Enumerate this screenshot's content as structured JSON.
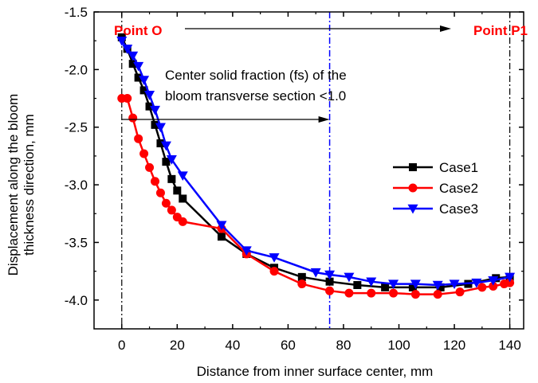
{
  "chart_data": {
    "type": "line",
    "xlabel": "Distance from inner surface center, mm",
    "ylabel_lines": [
      "Displacement along the bloom",
      "thickness direction, mm"
    ],
    "xlim": [
      -10,
      145
    ],
    "ylim": [
      -4.25,
      -1.5
    ],
    "xticks": [
      0,
      20,
      40,
      60,
      80,
      100,
      120,
      140
    ],
    "xtick_labels": [
      "0",
      "20",
      "40",
      "60",
      "80",
      "100",
      "120",
      "140"
    ],
    "yticks": [
      -1.5,
      -2.0,
      -2.5,
      -3.0,
      -3.5,
      -4.0
    ],
    "ytick_labels": [
      "-1.5",
      "-2.0",
      "-2.5",
      "-3.0",
      "-3.5",
      "-4.0"
    ],
    "grid": false,
    "legend_position": "right",
    "annotations": {
      "point_o": "Point O",
      "point_p1": "Point P1",
      "fs_line1": "Center solid fraction (fs) of the",
      "fs_line2": "bloom transverse section <1.0"
    },
    "reference_lines": {
      "point_o_x": 0,
      "point_p1_x": 140,
      "fs_boundary_x": 75
    },
    "series": [
      {
        "name": "Case1",
        "color": "#000000",
        "marker": "square",
        "x": [
          0,
          2,
          4,
          6,
          8,
          10,
          12,
          14,
          16,
          18,
          20,
          22,
          36,
          45,
          55,
          65,
          75,
          85,
          95,
          105,
          115,
          125,
          135,
          140
        ],
        "y": [
          -1.72,
          -1.82,
          -1.95,
          -2.07,
          -2.18,
          -2.32,
          -2.48,
          -2.64,
          -2.8,
          -2.95,
          -3.05,
          -3.12,
          -3.45,
          -3.6,
          -3.72,
          -3.8,
          -3.84,
          -3.87,
          -3.89,
          -3.89,
          -3.89,
          -3.86,
          -3.81,
          -3.8
        ]
      },
      {
        "name": "Case2",
        "color": "#ff0000",
        "marker": "circle",
        "x": [
          0,
          2,
          4,
          6,
          8,
          10,
          12,
          14,
          16,
          18,
          20,
          22,
          36,
          45,
          55,
          65,
          75,
          82,
          90,
          98,
          106,
          114,
          122,
          130,
          134,
          138,
          140
        ],
        "y": [
          -2.25,
          -2.25,
          -2.42,
          -2.6,
          -2.73,
          -2.85,
          -2.97,
          -3.07,
          -3.16,
          -3.22,
          -3.28,
          -3.32,
          -3.38,
          -3.6,
          -3.75,
          -3.86,
          -3.92,
          -3.94,
          -3.94,
          -3.94,
          -3.95,
          -3.95,
          -3.93,
          -3.89,
          -3.88,
          -3.86,
          -3.85
        ]
      },
      {
        "name": "Case3",
        "color": "#0000ff",
        "marker": "triangle-down",
        "x": [
          0,
          2,
          4,
          6,
          8,
          10,
          12,
          14,
          16,
          18,
          22,
          36,
          45,
          55,
          70,
          75,
          82,
          90,
          98,
          106,
          114,
          120,
          128,
          134,
          140
        ],
        "y": [
          -1.75,
          -1.82,
          -1.88,
          -1.97,
          -2.09,
          -2.22,
          -2.35,
          -2.5,
          -2.66,
          -2.78,
          -2.92,
          -3.35,
          -3.57,
          -3.63,
          -3.76,
          -3.78,
          -3.8,
          -3.84,
          -3.86,
          -3.86,
          -3.87,
          -3.86,
          -3.85,
          -3.83,
          -3.8
        ]
      }
    ]
  }
}
